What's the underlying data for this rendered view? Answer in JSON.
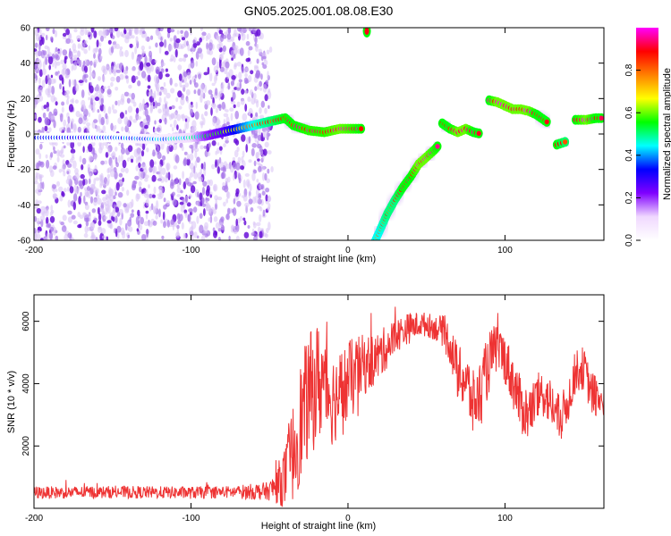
{
  "title": "GN05.2025.001.08.08.E30",
  "chart_data": [
    {
      "type": "heatmap",
      "xlabel": "Height of straight line (km)",
      "ylabel": "Frequency (Hz)",
      "xlim": [
        -200,
        163
      ],
      "ylim": [
        -60,
        60
      ],
      "xticks": [
        -200,
        -100,
        0,
        100
      ],
      "yticks": [
        -60,
        -40,
        -20,
        0,
        20,
        40,
        60
      ],
      "colorbar": {
        "label": "Normalized spectral amplitude",
        "range": [
          0,
          1
        ],
        "ticks": [
          0.0,
          0.2,
          0.4,
          0.6,
          0.8
        ],
        "colors": [
          "#ffffff",
          "#f0d8ff",
          "#8000ff",
          "#0000ff",
          "#00ffff",
          "#00ff00",
          "#ffff00",
          "#ff8000",
          "#ff0000",
          "#ff00ff"
        ]
      },
      "noise_region": {
        "x_range": [
          -200,
          -50
        ],
        "y_range": [
          -60,
          60
        ]
      },
      "ridge": [
        {
          "x": -200,
          "y": -2,
          "amp": 0.3
        },
        {
          "x": -150,
          "y": -2,
          "amp": 0.35
        },
        {
          "x": -120,
          "y": -3,
          "amp": 0.4
        },
        {
          "x": -100,
          "y": -2,
          "amp": 0.45
        },
        {
          "x": -90,
          "y": -1,
          "amp": 0.55
        },
        {
          "x": -80,
          "y": 1,
          "amp": 0.6
        },
        {
          "x": -70,
          "y": 3,
          "amp": 0.7
        },
        {
          "x": -60,
          "y": 5,
          "amp": 0.8
        },
        {
          "x": -50,
          "y": 7,
          "amp": 0.85
        },
        {
          "x": -40,
          "y": 9,
          "amp": 0.9
        },
        {
          "x": -35,
          "y": 5,
          "amp": 0.9
        },
        {
          "x": -25,
          "y": 2,
          "amp": 0.92
        },
        {
          "x": -15,
          "y": 1,
          "amp": 0.92
        },
        {
          "x": -5,
          "y": 3,
          "amp": 0.95
        },
        {
          "x": 10,
          "y": 3,
          "amp": 0.9
        },
        {
          "x": 17,
          "y": -61,
          "amp": 0.8
        },
        {
          "x": 20,
          "y": -55,
          "amp": 0.8
        },
        {
          "x": 25,
          "y": -45,
          "amp": 0.85
        },
        {
          "x": 30,
          "y": -37,
          "amp": 0.85
        },
        {
          "x": 35,
          "y": -30,
          "amp": 0.9
        },
        {
          "x": 40,
          "y": -24,
          "amp": 0.9
        },
        {
          "x": 45,
          "y": -17,
          "amp": 0.95
        },
        {
          "x": 50,
          "y": -13,
          "amp": 0.95
        },
        {
          "x": 55,
          "y": -9,
          "amp": 0.92
        },
        {
          "x": 58,
          "y": -6,
          "amp": 0.9
        },
        {
          "x": 60,
          "y": 6,
          "amp": 0.9
        },
        {
          "x": 65,
          "y": 3,
          "amp": 0.9
        },
        {
          "x": 70,
          "y": 1,
          "amp": 0.95
        },
        {
          "x": 75,
          "y": 3,
          "amp": 0.95
        },
        {
          "x": 80,
          "y": 1,
          "amp": 0.9
        },
        {
          "x": 85,
          "y": 0,
          "amp": 0.9
        },
        {
          "x": 90,
          "y": 19,
          "amp": 0.9
        },
        {
          "x": 95,
          "y": 18,
          "amp": 0.95
        },
        {
          "x": 100,
          "y": 16,
          "amp": 0.95
        },
        {
          "x": 105,
          "y": 14,
          "amp": 0.95
        },
        {
          "x": 110,
          "y": 14,
          "amp": 0.95
        },
        {
          "x": 115,
          "y": 13,
          "amp": 0.95
        },
        {
          "x": 120,
          "y": 11,
          "amp": 0.9
        },
        {
          "x": 128,
          "y": 6,
          "amp": 0.9
        },
        {
          "x": 133,
          "y": -6,
          "amp": 0.9
        },
        {
          "x": 140,
          "y": -4,
          "amp": 0.85
        },
        {
          "x": 145,
          "y": 8,
          "amp": 0.9
        },
        {
          "x": 152,
          "y": 8,
          "amp": 0.95
        },
        {
          "x": 158,
          "y": 9,
          "amp": 0.9
        },
        {
          "x": 163,
          "y": 9,
          "amp": 0.9
        }
      ],
      "spots": [
        {
          "x": 12,
          "y": 58,
          "amp": 0.9
        }
      ]
    },
    {
      "type": "line",
      "xlabel": "Height of straight line (km)",
      "ylabel": "SNR (10 * v/v)",
      "xlim": [
        -200,
        163
      ],
      "ylim": [
        0,
        6850
      ],
      "xticks": [
        -200,
        -100,
        0,
        100
      ],
      "yticks": [
        2000,
        4000,
        6000
      ],
      "color": "#ee3333",
      "x": [
        -200,
        -150,
        -100,
        -75,
        -50,
        -40,
        -35,
        -30,
        -25,
        -20,
        -15,
        -10,
        -5,
        0,
        5,
        10,
        15,
        20,
        25,
        30,
        35,
        40,
        45,
        50,
        55,
        60,
        65,
        70,
        75,
        80,
        85,
        90,
        95,
        100,
        105,
        110,
        115,
        120,
        125,
        130,
        135,
        140,
        145,
        150,
        155,
        163
      ],
      "y": [
        500,
        520,
        500,
        520,
        550,
        1000,
        1800,
        2800,
        3600,
        4000,
        4100,
        3500,
        3700,
        4000,
        4300,
        4600,
        4700,
        4900,
        5200,
        5500,
        5700,
        5800,
        5900,
        5900,
        5800,
        5700,
        5300,
        4300,
        4100,
        3300,
        3800,
        4700,
        5200,
        4800,
        4100,
        3300,
        3000,
        3500,
        3700,
        3300,
        2800,
        3400,
        4400,
        4500,
        3700,
        3400
      ],
      "band": [
        200,
        200,
        200,
        200,
        300,
        1000,
        1600,
        2000,
        2000,
        2000,
        1800,
        1500,
        1400,
        1400,
        1200,
        1000,
        900,
        800,
        700,
        600,
        500,
        500,
        400,
        400,
        400,
        500,
        700,
        900,
        1000,
        1100,
        1100,
        1000,
        800,
        800,
        900,
        900,
        900,
        800,
        800,
        800,
        800,
        700,
        700,
        700,
        700,
        700
      ]
    }
  ]
}
